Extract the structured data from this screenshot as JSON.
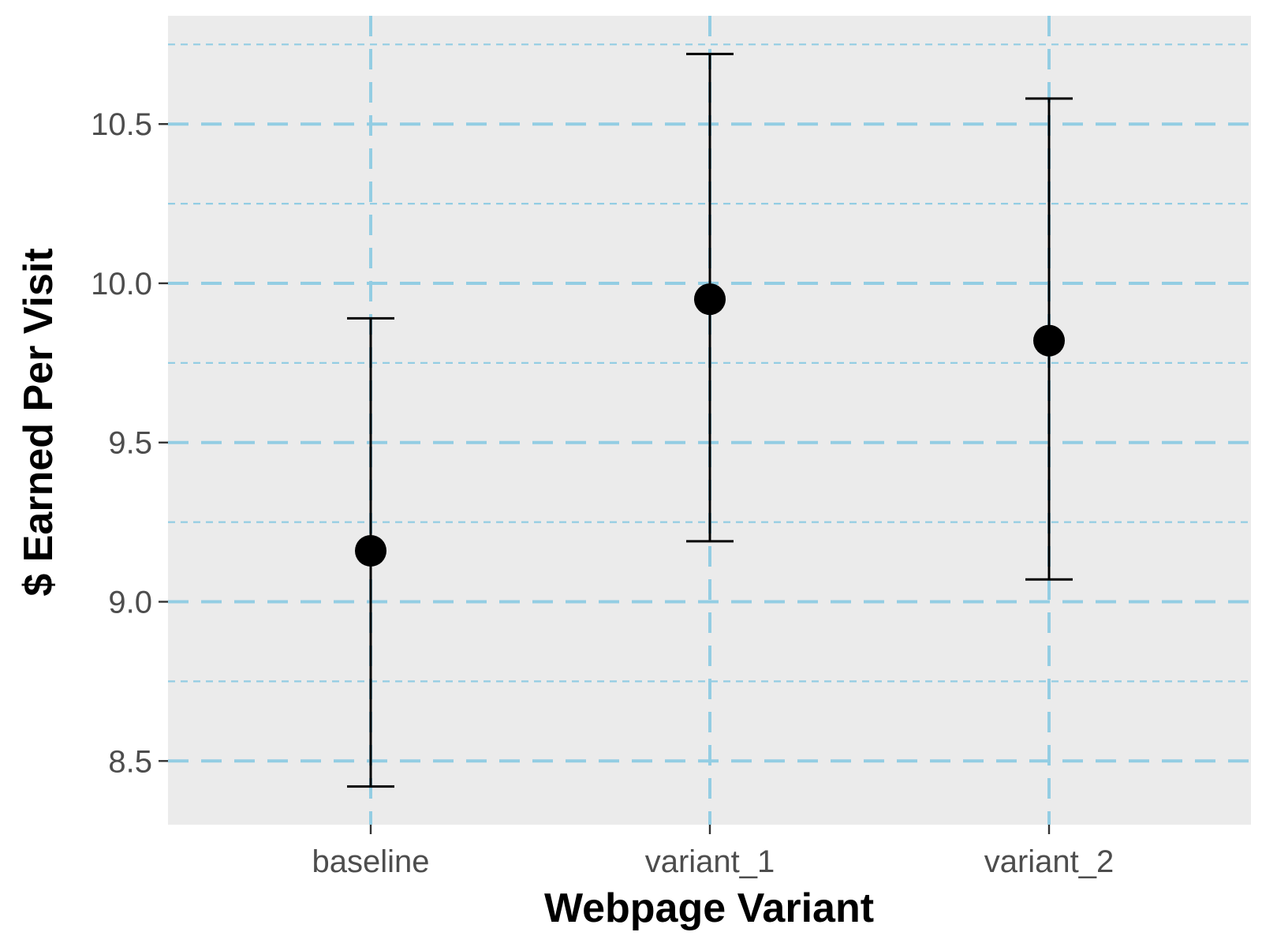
{
  "chart_data": {
    "type": "scatter",
    "subtype": "point-with-error-bars",
    "title": "",
    "xlabel": "Webpage Variant",
    "ylabel": "$ Earned Per Visit",
    "categories": [
      "baseline",
      "variant_1",
      "variant_2"
    ],
    "values": [
      9.16,
      9.95,
      9.82
    ],
    "error_low": [
      8.42,
      9.19,
      9.07
    ],
    "error_high": [
      9.89,
      10.72,
      10.58
    ],
    "ylim": [
      8.3,
      10.84
    ],
    "yticks": [
      8.5,
      9.0,
      9.5,
      10.0,
      10.5
    ],
    "ytick_labels": [
      "8.5",
      "9.0",
      "9.5",
      "10.0",
      "10.5"
    ],
    "y_minor_ticks": [
      8.75,
      9.25,
      9.75,
      10.25,
      10.75
    ],
    "grid": true,
    "legend": "none",
    "colors": {
      "panel": "#ebebeb",
      "grid": "#93cde3",
      "points": "#000000",
      "tick_text": "#4d4d4d"
    }
  }
}
